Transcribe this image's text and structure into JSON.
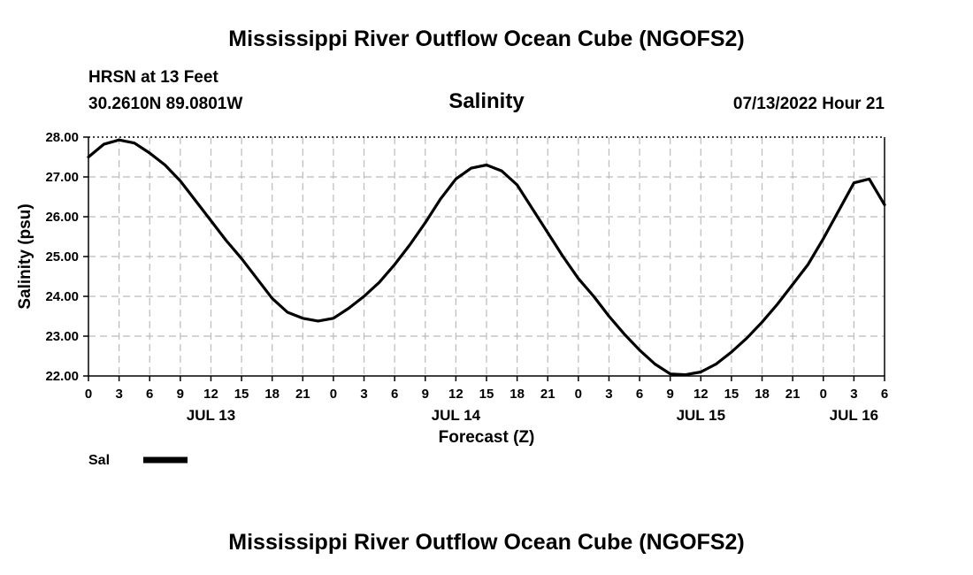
{
  "header": {
    "title_top": "Mississippi River Outflow Ocean Cube (NGOFS2)",
    "station": "HRSN at 13 Feet",
    "coords": "30.2610N  89.0801W",
    "datetime": "07/13/2022 Hour 21",
    "title_bottom": "Mississippi River Outflow Ocean Cube (NGOFS2)"
  },
  "chart_data": {
    "type": "line",
    "title": "Salinity",
    "xlabel": "Forecast (Z)",
    "ylabel": "Salinity (psu)",
    "ylim": [
      22.0,
      28.0
    ],
    "yticks": [
      "22.00",
      "23.00",
      "24.00",
      "25.00",
      "26.00",
      "27.00",
      "28.00"
    ],
    "xrange_hours": [
      0,
      78
    ],
    "xtick_labels": [
      "0",
      "3",
      "6",
      "9",
      "12",
      "15",
      "18",
      "21",
      "0",
      "3",
      "6",
      "9",
      "12",
      "15",
      "18",
      "21",
      "0",
      "3",
      "6",
      "9",
      "12",
      "15",
      "18",
      "21",
      "0",
      "3",
      "6"
    ],
    "day_labels": [
      {
        "label": "JUL 13",
        "hour": 12
      },
      {
        "label": "JUL 14",
        "hour": 36
      },
      {
        "label": "JUL 15",
        "hour": 60
      },
      {
        "label": "JUL 16",
        "hour": 75
      }
    ],
    "grid": true,
    "legend": [
      {
        "name": "Sal",
        "color": "#000000"
      }
    ],
    "series": [
      {
        "name": "Sal",
        "color": "#000000",
        "x": [
          0,
          1.5,
          3,
          4.5,
          6,
          7.5,
          9,
          10.5,
          12,
          13.5,
          15,
          16.5,
          18,
          19.5,
          21,
          22.5,
          24,
          25.5,
          27,
          28.5,
          30,
          31.5,
          33,
          34.5,
          36,
          37.5,
          39,
          40.5,
          42,
          43.5,
          45,
          46.5,
          48,
          49.5,
          51,
          52.5,
          54,
          55.5,
          57,
          58.5,
          60,
          61.5,
          63,
          64.5,
          66,
          67.5,
          69,
          70.5,
          72,
          73.5,
          75,
          76.5,
          78
        ],
        "y": [
          27.5,
          27.82,
          27.93,
          27.85,
          27.6,
          27.3,
          26.9,
          26.4,
          25.9,
          25.4,
          24.95,
          24.45,
          23.95,
          23.6,
          23.45,
          23.38,
          23.45,
          23.7,
          24.0,
          24.35,
          24.8,
          25.3,
          25.85,
          26.45,
          26.95,
          27.22,
          27.3,
          27.15,
          26.8,
          26.2,
          25.6,
          25.0,
          24.45,
          24.0,
          23.5,
          23.05,
          22.65,
          22.3,
          22.05,
          22.03,
          22.1,
          22.3,
          22.6,
          22.95,
          23.35,
          23.8,
          24.3,
          24.8,
          25.45,
          26.15,
          26.85,
          26.95,
          26.3
        ]
      }
    ]
  }
}
